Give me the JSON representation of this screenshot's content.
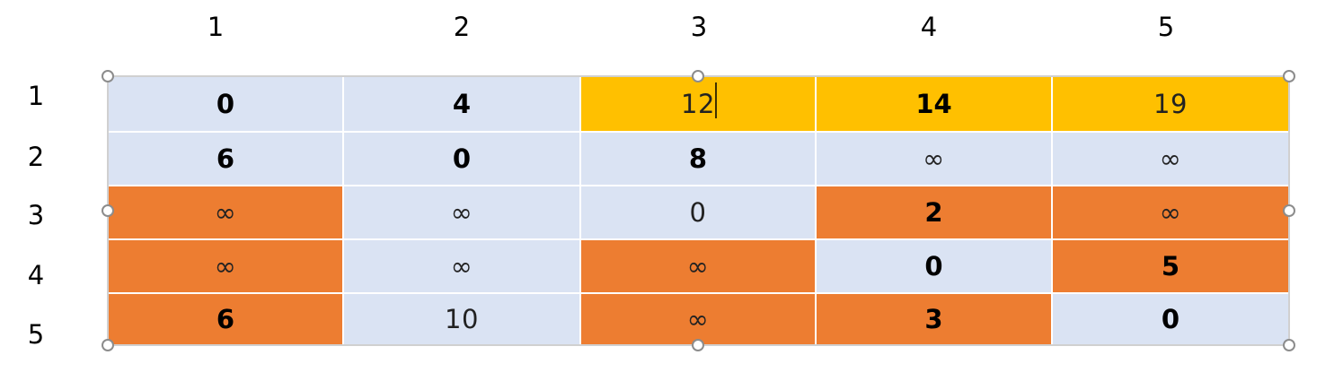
{
  "column_headers": [
    1,
    2,
    3,
    4,
    5
  ],
  "row_headers": [
    1,
    2,
    3,
    4,
    5
  ],
  "table": {
    "rows": [
      [
        0,
        4,
        12,
        14,
        19
      ],
      [
        6,
        0,
        8,
        "∞",
        "∞"
      ],
      [
        "∞",
        "∞",
        0,
        2,
        "∞"
      ],
      [
        "∞",
        "∞",
        "∞",
        0,
        5
      ],
      [
        6,
        10,
        "∞",
        3,
        0
      ]
    ]
  }
}
